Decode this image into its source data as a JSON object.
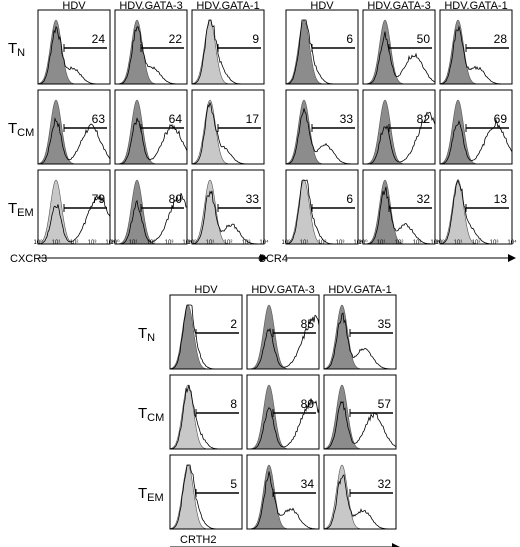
{
  "chart_data": [
    {
      "type": "histogram-grid",
      "marker": "CXCR3",
      "xlabel": "CXCR3",
      "x_scale": "log",
      "xlim": [
        1,
        10000
      ],
      "x_ticks": [
        "10⁰",
        "10¹",
        "10²",
        "10³",
        "10⁴"
      ],
      "columns": [
        "HDV",
        "HDV.GATA-3",
        "HDV.GATA-1"
      ],
      "rows": [
        {
          "label": "T",
          "sub": "N"
        },
        {
          "label": "T",
          "sub": "CM"
        },
        {
          "label": "T",
          "sub": "EM"
        }
      ],
      "percent_positive": [
        [
          24,
          22,
          9
        ],
        [
          63,
          64,
          17
        ],
        [
          79,
          80,
          33
        ]
      ]
    },
    {
      "type": "histogram-grid",
      "marker": "CCR4",
      "xlabel": "CCR4",
      "x_scale": "log",
      "xlim": [
        1,
        10000
      ],
      "x_ticks": [
        "10⁰",
        "10¹",
        "10²",
        "10³",
        "10⁴"
      ],
      "columns": [
        "HDV",
        "HDV.GATA-3",
        "HDV.GATA-1"
      ],
      "rows": [
        {
          "label": "T",
          "sub": "N"
        },
        {
          "label": "T",
          "sub": "CM"
        },
        {
          "label": "T",
          "sub": "EM"
        }
      ],
      "percent_positive": [
        [
          6,
          50,
          28
        ],
        [
          33,
          82,
          69
        ],
        [
          6,
          32,
          13
        ]
      ]
    },
    {
      "type": "histogram-grid",
      "marker": "CRTH2",
      "xlabel": "CRTH2",
      "x_scale": "log",
      "xlim": [
        1,
        10000
      ],
      "x_ticks": [],
      "columns": [
        "HDV",
        "HDV.GATA-3",
        "HDV.GATA-1"
      ],
      "rows": [
        {
          "label": "T",
          "sub": "N"
        },
        {
          "label": "T",
          "sub": "CM"
        },
        {
          "label": "T",
          "sub": "EM"
        }
      ],
      "percent_positive": [
        [
          2,
          85,
          35
        ],
        [
          8,
          80,
          57
        ],
        [
          5,
          34,
          32
        ]
      ]
    }
  ],
  "colors": {
    "control_fill_dark": "#8c8c8c",
    "control_fill_light": "#c8c8c8",
    "stain_line": "#000000",
    "frame": "#000000"
  }
}
